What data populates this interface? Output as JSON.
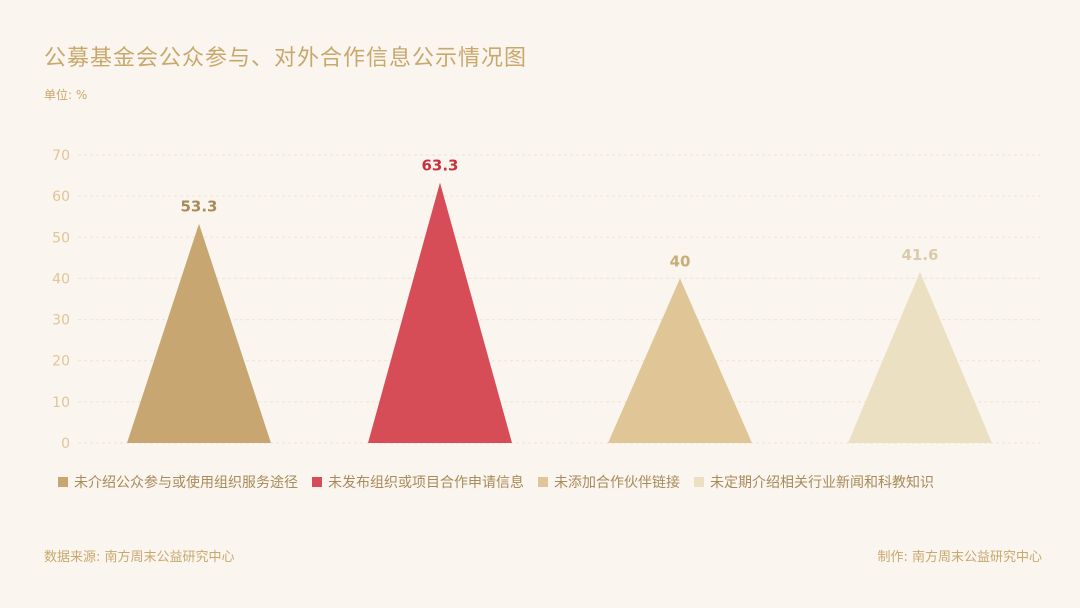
{
  "header": {
    "title": "公募基金会公众参与、对外合作信息公示情况图",
    "unit": "单位: %"
  },
  "footer": {
    "source": "数据来源: 南方周末公益研究中心",
    "credit": "制作: 南方周末公益研究中心"
  },
  "chart_data": {
    "type": "bar",
    "title": "公募基金会公众参与、对外合作信息公示情况图",
    "ylabel": "单位: %",
    "ylim": [
      0,
      70
    ],
    "yticks": [
      0,
      10,
      20,
      30,
      40,
      50,
      60,
      70
    ],
    "grid": true,
    "legend_position": "bottom",
    "categories": [
      "未介绍公众参与或使用组织服务途径",
      "未发布组织或项目合作申请信息",
      "未添加合作伙伴链接",
      "未定期介绍相关行业新闻和科教知识"
    ],
    "values": [
      53.3,
      63.3,
      40,
      41.6
    ],
    "value_labels": [
      "53.3",
      "63.3",
      "40",
      "41.6"
    ],
    "colors": [
      "#c8a672",
      "#d64d58",
      "#e0c597",
      "#ebe0c2"
    ],
    "label_colors": [
      "#a98b5a",
      "#c8323f",
      "#c9ae78",
      "#d9ccaa"
    ]
  }
}
